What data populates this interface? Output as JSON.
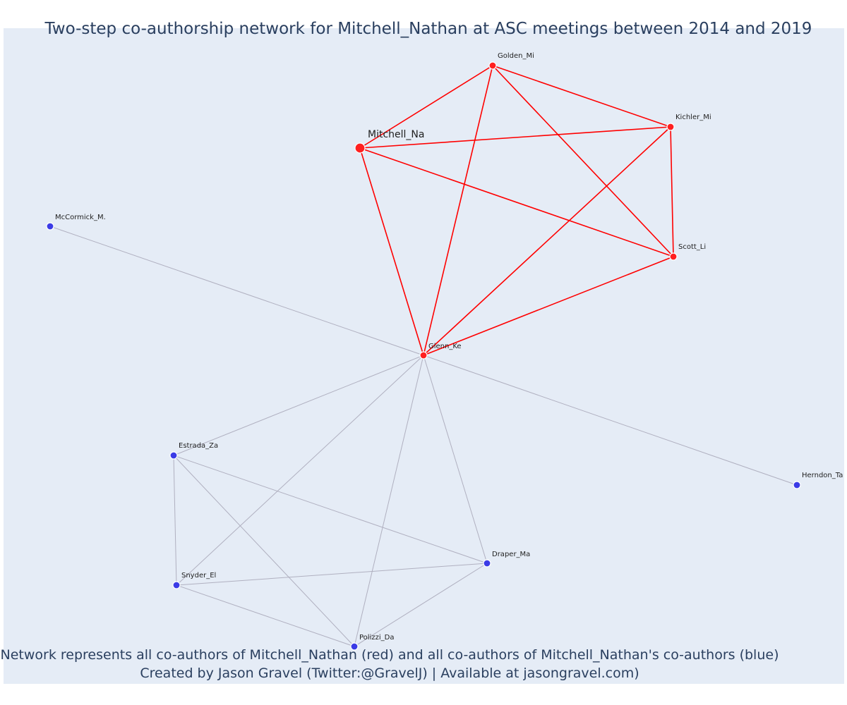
{
  "title": "Two-step co-authorship network for Mitchell_Nathan at ASC meetings between 2014 and 2019",
  "caption": {
    "line1": "Network represents all co-authors of Mitchell_Nathan (red) and all co-authors of Mitchell_Nathan's co-authors (blue)",
    "line2": "Created by Jason Gravel (Twitter:@GravelJ) | Available at jasongravel.com)"
  },
  "colors": {
    "plot_background": "#e5ecf6",
    "first_step_node": "#ff2020",
    "second_step_node": "#3b3be6",
    "first_step_edge": "#ff0000",
    "second_step_edge": "#b0b0c0",
    "text": "#2a3f5f"
  },
  "network": {
    "ego": "Mitchell_Na",
    "nodes": [
      {
        "id": "Mitchell_Na",
        "label": "Mitchell_Na",
        "group": "ego"
      },
      {
        "id": "Golden_Mi",
        "label": "Golden_Mi",
        "group": "first-step"
      },
      {
        "id": "Kichler_Mi",
        "label": "Kichler_Mi",
        "group": "first-step"
      },
      {
        "id": "Scott_Li",
        "label": "Scott_Li",
        "group": "first-step"
      },
      {
        "id": "Glenn_Ke",
        "label": "Glenn_Ke",
        "group": "first-step"
      },
      {
        "id": "McCormick_M.",
        "label": "McCormick_M.",
        "group": "second-step"
      },
      {
        "id": "Estrada_Za",
        "label": "Estrada_Za",
        "group": "second-step"
      },
      {
        "id": "Herndon_Ta",
        "label": "Herndon_Ta",
        "group": "second-step"
      },
      {
        "id": "Draper_Ma",
        "label": "Draper_Ma",
        "group": "second-step"
      },
      {
        "id": "Snyder_El",
        "label": "Snyder_El",
        "group": "second-step"
      },
      {
        "id": "Polizzi_Da",
        "label": "Polizzi_Da",
        "group": "second-step"
      }
    ],
    "edges": [
      {
        "source": "Mitchell_Na",
        "target": "Golden_Mi",
        "group": "first-step"
      },
      {
        "source": "Mitchell_Na",
        "target": "Kichler_Mi",
        "group": "first-step"
      },
      {
        "source": "Mitchell_Na",
        "target": "Scott_Li",
        "group": "first-step"
      },
      {
        "source": "Mitchell_Na",
        "target": "Glenn_Ke",
        "group": "first-step"
      },
      {
        "source": "Golden_Mi",
        "target": "Kichler_Mi",
        "group": "first-step"
      },
      {
        "source": "Golden_Mi",
        "target": "Scott_Li",
        "group": "first-step"
      },
      {
        "source": "Golden_Mi",
        "target": "Glenn_Ke",
        "group": "first-step"
      },
      {
        "source": "Kichler_Mi",
        "target": "Scott_Li",
        "group": "first-step"
      },
      {
        "source": "Kichler_Mi",
        "target": "Glenn_Ke",
        "group": "first-step"
      },
      {
        "source": "Scott_Li",
        "target": "Glenn_Ke",
        "group": "first-step"
      },
      {
        "source": "Glenn_Ke",
        "target": "McCormick_M.",
        "group": "second-step"
      },
      {
        "source": "Glenn_Ke",
        "target": "Herndon_Ta",
        "group": "second-step"
      },
      {
        "source": "Glenn_Ke",
        "target": "Estrada_Za",
        "group": "second-step"
      },
      {
        "source": "Glenn_Ke",
        "target": "Snyder_El",
        "group": "second-step"
      },
      {
        "source": "Glenn_Ke",
        "target": "Polizzi_Da",
        "group": "second-step"
      },
      {
        "source": "Glenn_Ke",
        "target": "Draper_Ma",
        "group": "second-step"
      },
      {
        "source": "Estrada_Za",
        "target": "Snyder_El",
        "group": "second-step"
      },
      {
        "source": "Estrada_Za",
        "target": "Polizzi_Da",
        "group": "second-step"
      },
      {
        "source": "Estrada_Za",
        "target": "Draper_Ma",
        "group": "second-step"
      },
      {
        "source": "Snyder_El",
        "target": "Draper_Ma",
        "group": "second-step"
      },
      {
        "source": "Snyder_El",
        "target": "Polizzi_Da",
        "group": "second-step"
      },
      {
        "source": "Draper_Ma",
        "target": "Polizzi_Da",
        "group": "second-step"
      }
    ]
  }
}
